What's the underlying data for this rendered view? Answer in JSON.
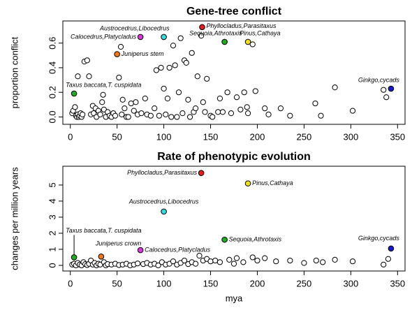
{
  "chart_data": [
    {
      "type": "scatter",
      "title": "Gene-tree conflict",
      "ylabel": "proportion conflict",
      "xlim": [
        -8,
        358
      ],
      "xticks": [
        0,
        50,
        100,
        150,
        200,
        250,
        300,
        350
      ],
      "ylim": [
        -0.06,
        0.78
      ],
      "yticks": [
        {
          "value": 0,
          "label": "0.0"
        },
        0.2,
        0.4,
        0.6
      ],
      "points": {
        "x": [
          2,
          3,
          5,
          6,
          7,
          8,
          9,
          10,
          11,
          12,
          13,
          15,
          18,
          20,
          8,
          22,
          24,
          25,
          27,
          28,
          30,
          32,
          34,
          35,
          36,
          38,
          40,
          42,
          44,
          46,
          48,
          52,
          54,
          55,
          56,
          58,
          60,
          62,
          65,
          68,
          70,
          72,
          76,
          80,
          82,
          86,
          90,
          92,
          95,
          97,
          100,
          102,
          104,
          106,
          108,
          110,
          112,
          114,
          116,
          118,
          120,
          122,
          124,
          126,
          128,
          130,
          132,
          134,
          136,
          140,
          142,
          144,
          146,
          150,
          152,
          158,
          160,
          163,
          168,
          172,
          178,
          182,
          186,
          189,
          190,
          195,
          198,
          208,
          212,
          225,
          235,
          262,
          268,
          283,
          302,
          335,
          338
        ],
        "y": [
          0.03,
          0.05,
          0.08,
          0.01,
          0.0,
          0.02,
          0.0,
          0.01,
          0.03,
          0.0,
          0.02,
          0.45,
          0.46,
          0.33,
          0.33,
          0.02,
          0.09,
          0.03,
          0.07,
          0.0,
          0.05,
          0.02,
          0.12,
          0.18,
          0.06,
          0.0,
          0.04,
          0.01,
          0.0,
          0.03,
          0.01,
          0.32,
          0.57,
          0.02,
          0.14,
          0.07,
          0.0,
          0.0,
          0.11,
          0.05,
          0.12,
          0.02,
          0.03,
          0.15,
          0.02,
          0.01,
          0.07,
          0.38,
          0.01,
          0.4,
          0.23,
          0.02,
          0.15,
          0.4,
          0.0,
          0.58,
          0.42,
          0.0,
          0.2,
          0.64,
          0.03,
          0.46,
          0.44,
          0.14,
          0.0,
          0.52,
          0.04,
          0.07,
          0.33,
          0.66,
          0.12,
          0.04,
          0.31,
          0.01,
          0.0,
          0.04,
          0.15,
          0.04,
          0.2,
          0.03,
          0.16,
          0.06,
          0.2,
          0.08,
          0.03,
          0.59,
          0.21,
          0.07,
          0.02,
          0.07,
          0.01,
          0.11,
          0.01,
          0.24,
          0.05,
          0.22,
          0.16
        ]
      },
      "highlights": [
        {
          "label": "Taxus baccata,T. cuspidata",
          "x": 4,
          "y": 0.19,
          "color": "#22aa22"
        },
        {
          "label": "Juniperus stem",
          "x": 50,
          "y": 0.51,
          "color": "#f07818"
        },
        {
          "label": "Calocedrus,Platycladus",
          "x": 75,
          "y": 0.65,
          "color": "#d838d8"
        },
        {
          "label": "Austrocedrus,Libocedrus",
          "x": 100,
          "y": 0.65,
          "color": "#38d8d8"
        },
        {
          "label": "Phyllocladus,Parasitaxus",
          "x": 141,
          "y": 0.73,
          "color": "#e02020"
        },
        {
          "label": "Sequoia,Athrotaxis",
          "x": 165,
          "y": 0.61,
          "color": "#22aa22"
        },
        {
          "label": "Pinus,Cathaya",
          "x": 190,
          "y": 0.61,
          "color": "#f0e020"
        },
        {
          "label": "Ginkgo,cycads",
          "x": 343,
          "y": 0.23,
          "color": "#1818c8"
        }
      ]
    },
    {
      "type": "scatter",
      "title": "Rate of phenotypic evolution",
      "ylabel": "changes per million years",
      "xlabel": "mya",
      "xlim": [
        -8,
        358
      ],
      "xticks": [
        0,
        50,
        100,
        150,
        200,
        250,
        300,
        350
      ],
      "ylim": [
        -0.35,
        6.17
      ],
      "yticks": [
        0,
        1,
        2,
        3,
        4,
        5
      ],
      "points": {
        "x": [
          2,
          4,
          6,
          8,
          10,
          12,
          14,
          16,
          18,
          20,
          22,
          24,
          26,
          28,
          30,
          32,
          36,
          38,
          40,
          44,
          48,
          52,
          56,
          60,
          64,
          68,
          72,
          78,
          82,
          86,
          90,
          94,
          98,
          102,
          106,
          110,
          114,
          118,
          122,
          126,
          130,
          134,
          138,
          142,
          146,
          150,
          155,
          160,
          170,
          175,
          178,
          185,
          195,
          200,
          208,
          220,
          235,
          250,
          263,
          270,
          283,
          302,
          335,
          340
        ],
        "y": [
          0.05,
          0.1,
          0.0,
          0.15,
          0.05,
          0.0,
          0.2,
          0.08,
          0.02,
          0.1,
          0.3,
          0.05,
          0.15,
          0.0,
          0.1,
          0.05,
          0.2,
          0.0,
          0.08,
          0.05,
          0.1,
          0.02,
          0.05,
          0.1,
          0.0,
          0.05,
          0.12,
          0.08,
          0.15,
          0.05,
          0.1,
          0.0,
          0.2,
          0.05,
          0.1,
          0.25,
          0.05,
          0.15,
          0.3,
          0.08,
          0.2,
          0.1,
          0.6,
          0.3,
          0.4,
          0.25,
          0.3,
          0.2,
          0.35,
          0.1,
          0.45,
          0.2,
          0.5,
          0.3,
          0.45,
          0.25,
          0.3,
          0.15,
          0.3,
          0.2,
          0.35,
          0.25,
          0.05,
          0.4
        ]
      },
      "highlights": [
        {
          "label": "Taxus baccata,T. cuspidata",
          "x": 4,
          "y": 0.5,
          "color": "#22aa22"
        },
        {
          "label": "Juniperus crown",
          "x": 33,
          "y": 0.55,
          "color": "#f07818"
        },
        {
          "label": "Calocedrus,Platycladus",
          "x": 75,
          "y": 0.95,
          "color": "#d838d8"
        },
        {
          "label": "Austrocedrus,Libocedrus",
          "x": 100,
          "y": 3.35,
          "color": "#38d8d8"
        },
        {
          "label": "Phyllocladus,Parasitaxus",
          "x": 140,
          "y": 5.75,
          "color": "#e02020"
        },
        {
          "label": "Sequoia,Athrotaxis",
          "x": 165,
          "y": 1.6,
          "color": "#22aa22"
        },
        {
          "label": "Pinus,Cathaya",
          "x": 190,
          "y": 5.1,
          "color": "#f0e020"
        },
        {
          "label": "Ginkgo,cycads",
          "x": 343,
          "y": 1.05,
          "color": "#1818c8"
        }
      ]
    }
  ]
}
